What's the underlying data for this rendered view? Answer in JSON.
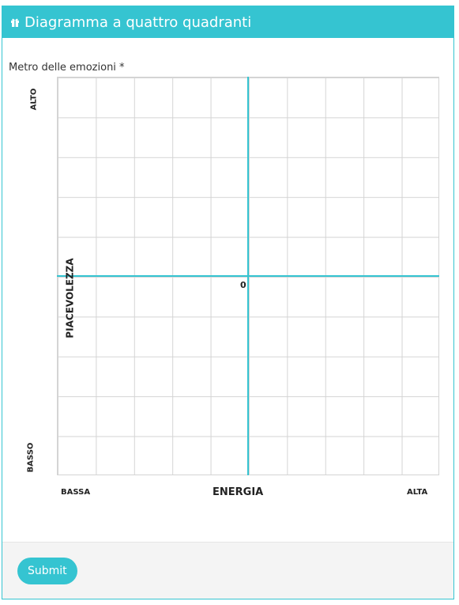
{
  "header": {
    "title": "Diagramma a quattro quadranti",
    "icon": "gift-icon"
  },
  "field": {
    "label": "Metro delle emozioni *"
  },
  "chart": {
    "y_top": "ALTO",
    "y_bottom": "BASSO",
    "y_axis_label": "PIACEVOLEZZA",
    "x_left": "BASSA",
    "x_axis_label": "ENERGIA",
    "x_right": "ALTA",
    "origin_label": "0"
  },
  "footer": {
    "submit_label": "Submit"
  },
  "colors": {
    "accent": "#35c4d1",
    "grid": "#d4d4d4",
    "footer_bg": "#f4f4f4"
  }
}
